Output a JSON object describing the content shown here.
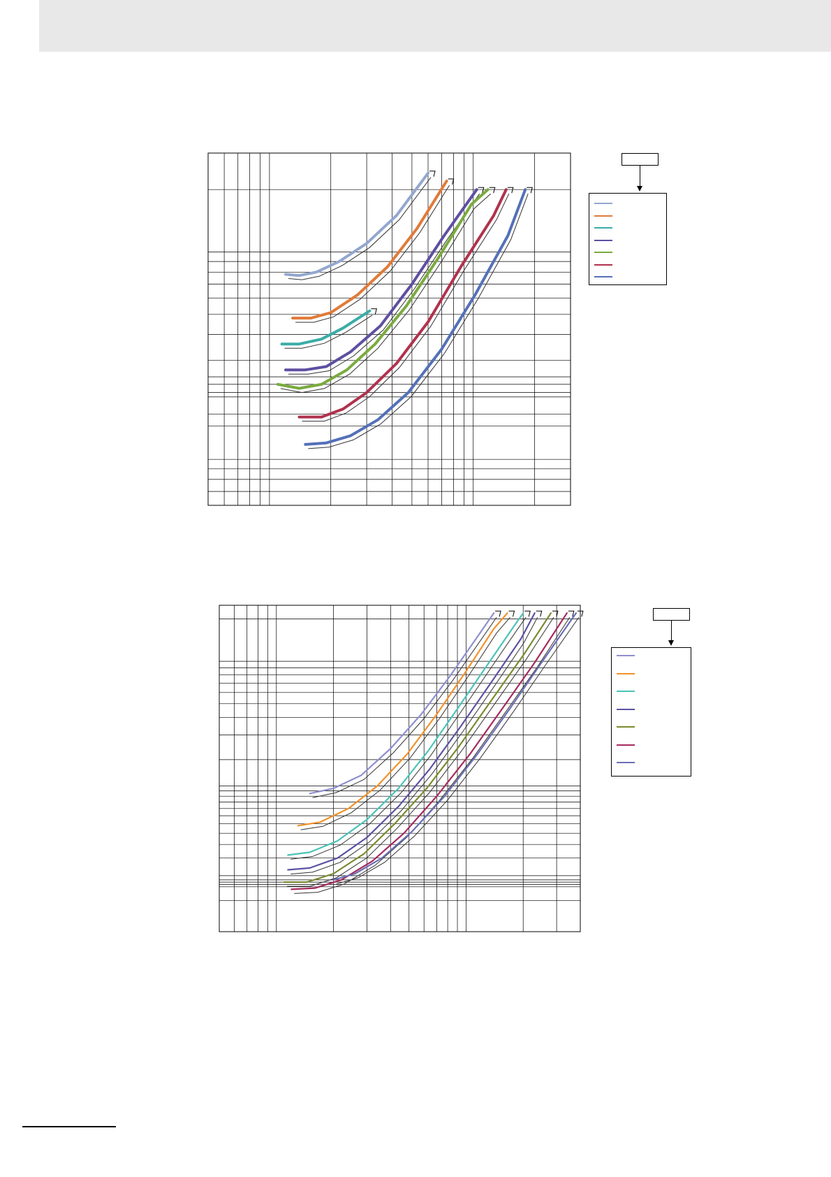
{
  "page": {
    "header_band": true,
    "footer_rule": true
  },
  "chart_data": [
    {
      "type": "line",
      "title": "",
      "xlabel": "",
      "ylabel": "",
      "x_scale": "log",
      "y_scale": "log",
      "grid": true,
      "legend_position": "right",
      "legend_tag": "",
      "series": [
        {
          "color": "#93a7cf",
          "points": [
            [
              1.2,
              0.78
            ],
            [
              1.4,
              0.77
            ],
            [
              1.7,
              0.8
            ],
            [
              2.2,
              0.9
            ],
            [
              3.0,
              1.1
            ],
            [
              4.2,
              1.5
            ],
            [
              6.0,
              2.4
            ]
          ]
        },
        {
          "color": "#e07b39",
          "points": [
            [
              1.3,
              0.48
            ],
            [
              1.6,
              0.48
            ],
            [
              2.0,
              0.51
            ],
            [
              2.7,
              0.62
            ],
            [
              3.8,
              0.85
            ],
            [
              5.3,
              1.3
            ],
            [
              7.4,
              2.2
            ]
          ]
        },
        {
          "color": "#3aada7",
          "points": [
            [
              1.15,
              0.36
            ],
            [
              1.4,
              0.36
            ],
            [
              1.8,
              0.38
            ],
            [
              2.3,
              0.43
            ],
            [
              3.1,
              0.52
            ]
          ]
        },
        {
          "color": "#5e4fa2",
          "points": [
            [
              1.2,
              0.27
            ],
            [
              1.5,
              0.27
            ],
            [
              1.9,
              0.28
            ],
            [
              2.5,
              0.33
            ],
            [
              3.5,
              0.44
            ],
            [
              5.0,
              0.7
            ],
            [
              7.2,
              1.2
            ],
            [
              10.4,
              2.0
            ]
          ]
        },
        {
          "color": "#7aab3f",
          "points": [
            [
              1.1,
              0.23
            ],
            [
              1.4,
              0.22
            ],
            [
              1.8,
              0.23
            ],
            [
              2.4,
              0.27
            ],
            [
              3.3,
              0.36
            ],
            [
              4.7,
              0.55
            ],
            [
              6.8,
              0.95
            ],
            [
              9.8,
              1.7
            ],
            [
              11.8,
              2.0
            ]
          ]
        },
        {
          "color": "#b0324c",
          "points": [
            [
              1.4,
              0.16
            ],
            [
              1.8,
              0.16
            ],
            [
              2.3,
              0.175
            ],
            [
              3.0,
              0.21
            ],
            [
              4.2,
              0.29
            ],
            [
              6.0,
              0.46
            ],
            [
              8.7,
              0.85
            ],
            [
              12.6,
              1.5
            ],
            [
              14.5,
              2.0
            ]
          ]
        },
        {
          "color": "#5470b8",
          "points": [
            [
              1.5,
              0.118
            ],
            [
              1.9,
              0.12
            ],
            [
              2.5,
              0.13
            ],
            [
              3.4,
              0.155
            ],
            [
              4.8,
              0.21
            ],
            [
              7.0,
              0.34
            ],
            [
              10.2,
              0.62
            ],
            [
              14.8,
              1.2
            ],
            [
              18.0,
              2.0
            ]
          ]
        }
      ]
    },
    {
      "type": "line",
      "title": "",
      "xlabel": "",
      "ylabel": "",
      "x_scale": "log",
      "y_scale": "log",
      "grid": true,
      "legend_position": "right",
      "legend_tag": "",
      "series": [
        {
          "color": "#8f8fcf",
          "points": [
            [
              1.5,
              1.15
            ],
            [
              2.0,
              1.25
            ],
            [
              2.8,
              1.55
            ],
            [
              4.0,
              2.4
            ],
            [
              5.8,
              4.2
            ],
            [
              8.2,
              7.8
            ],
            [
              11.5,
              15.0
            ],
            [
              14.0,
              22.0
            ]
          ]
        },
        {
          "color": "#f0922b",
          "points": [
            [
              1.3,
              0.68
            ],
            [
              1.7,
              0.72
            ],
            [
              2.4,
              0.9
            ],
            [
              3.4,
              1.3
            ],
            [
              4.9,
              2.2
            ],
            [
              7.0,
              4.2
            ],
            [
              10.0,
              8.5
            ],
            [
              14.0,
              17.0
            ],
            [
              16.5,
              22.0
            ]
          ]
        },
        {
          "color": "#4cc3b7",
          "points": [
            [
              1.15,
              0.42
            ],
            [
              1.5,
              0.44
            ],
            [
              2.1,
              0.53
            ],
            [
              3.0,
              0.75
            ],
            [
              4.4,
              1.25
            ],
            [
              6.3,
              2.3
            ],
            [
              9.0,
              4.6
            ],
            [
              13.0,
              9.5
            ],
            [
              18.0,
              18.0
            ],
            [
              20.0,
              22.0
            ]
          ]
        },
        {
          "color": "#5b53a3",
          "points": [
            [
              1.15,
              0.33
            ],
            [
              1.5,
              0.34
            ],
            [
              2.1,
              0.4
            ],
            [
              3.0,
              0.56
            ],
            [
              4.4,
              0.93
            ],
            [
              6.4,
              1.7
            ],
            [
              9.3,
              3.4
            ],
            [
              13.5,
              7.0
            ],
            [
              19.5,
              14.5
            ],
            [
              23.0,
              22.0
            ]
          ]
        },
        {
          "color": "#7a8b2f",
          "points": [
            [
              1.1,
              0.27
            ],
            [
              1.45,
              0.27
            ],
            [
              2.0,
              0.31
            ],
            [
              2.9,
              0.43
            ],
            [
              4.2,
              0.7
            ],
            [
              6.2,
              1.25
            ],
            [
              9.2,
              2.5
            ],
            [
              13.5,
              5.2
            ],
            [
              20.0,
              11.0
            ],
            [
              28.0,
              22.0
            ]
          ]
        },
        {
          "color": "#a52a5e",
          "points": [
            [
              1.2,
              0.24
            ],
            [
              1.6,
              0.245
            ],
            [
              2.2,
              0.28
            ],
            [
              3.2,
              0.38
            ],
            [
              4.7,
              0.6
            ],
            [
              7.0,
              1.1
            ],
            [
              10.5,
              2.2
            ],
            [
              15.5,
              4.6
            ],
            [
              23.0,
              9.8
            ],
            [
              34.0,
              22.0
            ]
          ]
        },
        {
          "color": "#6b6fb5",
          "points": [
            [
              2.0,
              0.28
            ],
            [
              2.6,
              0.31
            ],
            [
              3.6,
              0.4
            ],
            [
              5.2,
              0.62
            ],
            [
              7.7,
              1.1
            ],
            [
              11.5,
              2.2
            ],
            [
              17.0,
              4.6
            ],
            [
              25.0,
              9.8
            ],
            [
              38.0,
              22.0
            ]
          ]
        }
      ]
    }
  ]
}
